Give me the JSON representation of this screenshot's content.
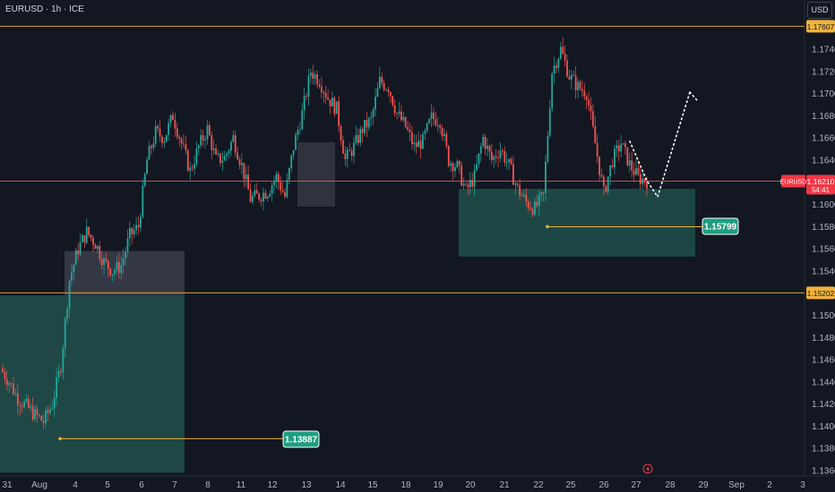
{
  "header": {
    "symbol_title": "EURUSD · 1h · ICE",
    "currency_button": "USD"
  },
  "chart_data": {
    "type": "candlestick",
    "symbol": "EURUSD",
    "timeframe": "1h",
    "exchange": "ICE",
    "ylim": [
      1.1358,
      1.1778
    ],
    "y_ticks": [
      "1.17400",
      "1.17200",
      "1.17000",
      "1.16800",
      "1.16600",
      "1.16400",
      "1.16200",
      "1.16000",
      "1.15800",
      "1.15600",
      "1.15400",
      "1.15000",
      "1.14800",
      "1.14600",
      "1.14400",
      "1.14200",
      "1.14000",
      "1.13800",
      "1.13600"
    ],
    "x_ticks": [
      "31",
      "Aug",
      "4",
      "5",
      "6",
      "7",
      "8",
      "11",
      "12",
      "13",
      "14",
      "15",
      "18",
      "19",
      "20",
      "21",
      "22",
      "25",
      "26",
      "27",
      "28",
      "29",
      "Sep",
      "2",
      "3"
    ],
    "horizontal_lines": [
      {
        "price": 1.17607,
        "label": "1.17607",
        "color": "#f0b23a"
      },
      {
        "price": 1.15202,
        "label": "1.15202",
        "color": "#f0b23a"
      },
      {
        "price": 1.1621,
        "label": "1.16210",
        "color": "#cf5a48"
      }
    ],
    "last_price": {
      "label": "EURUSD",
      "value": "1.16210",
      "countdown": "54:41",
      "color": "#f23645"
    },
    "callouts": [
      {
        "label": "1.13887",
        "price": 1.13887
      },
      {
        "label": "1.15799",
        "price": 1.15799
      }
    ],
    "zones": [
      {
        "kind": "demand",
        "color": "#1f4a48",
        "from_date": "Jul 30",
        "to_date": "Aug 7",
        "top": 1.1518,
        "bottom": 1.1358
      },
      {
        "kind": "gray-box",
        "color": "#3f4450",
        "from_date": "Aug 4",
        "to_date": "Aug 7",
        "top": 1.1558,
        "bottom": 1.1518
      },
      {
        "kind": "gray-box",
        "color": "#3a3d47",
        "from_date": "Aug 12",
        "to_date": "Aug 13",
        "top": 1.1656,
        "bottom": 1.1598
      },
      {
        "kind": "demand",
        "color": "#1d4a48",
        "from_date": "Aug 19",
        "to_date": "Aug 28",
        "top": 1.1614,
        "bottom": 1.1553
      }
    ],
    "projection": [
      [
        1.1646,
        1.1622
      ],
      [
        1.1622,
        1.1607
      ],
      [
        1.1607,
        1.1703
      ]
    ],
    "series_close": [
      1.1452,
      1.144,
      1.1425,
      1.1418,
      1.141,
      1.1404,
      1.142,
      1.1455,
      1.1532,
      1.156,
      1.1575,
      1.1565,
      1.1548,
      1.154,
      1.1545,
      1.1572,
      1.158,
      1.164,
      1.1665,
      1.166,
      1.168,
      1.1655,
      1.163,
      1.1652,
      1.1668,
      1.164,
      1.1642,
      1.166,
      1.1635,
      1.1605,
      1.1608,
      1.1612,
      1.1625,
      1.1607,
      1.1652,
      1.1682,
      1.172,
      1.1712,
      1.1696,
      1.1686,
      1.164,
      1.1652,
      1.1668,
      1.1676,
      1.1711,
      1.1706,
      1.1682,
      1.167,
      1.1652,
      1.1657,
      1.1678,
      1.1676,
      1.164,
      1.1634,
      1.1612,
      1.1625,
      1.166,
      1.164,
      1.165,
      1.1635,
      1.1614,
      1.1602,
      1.1596,
      1.1608,
      1.172,
      1.174,
      1.1716,
      1.1706,
      1.1701,
      1.1655,
      1.161,
      1.164,
      1.1655,
      1.1636,
      1.1624,
      1.1621
    ]
  }
}
